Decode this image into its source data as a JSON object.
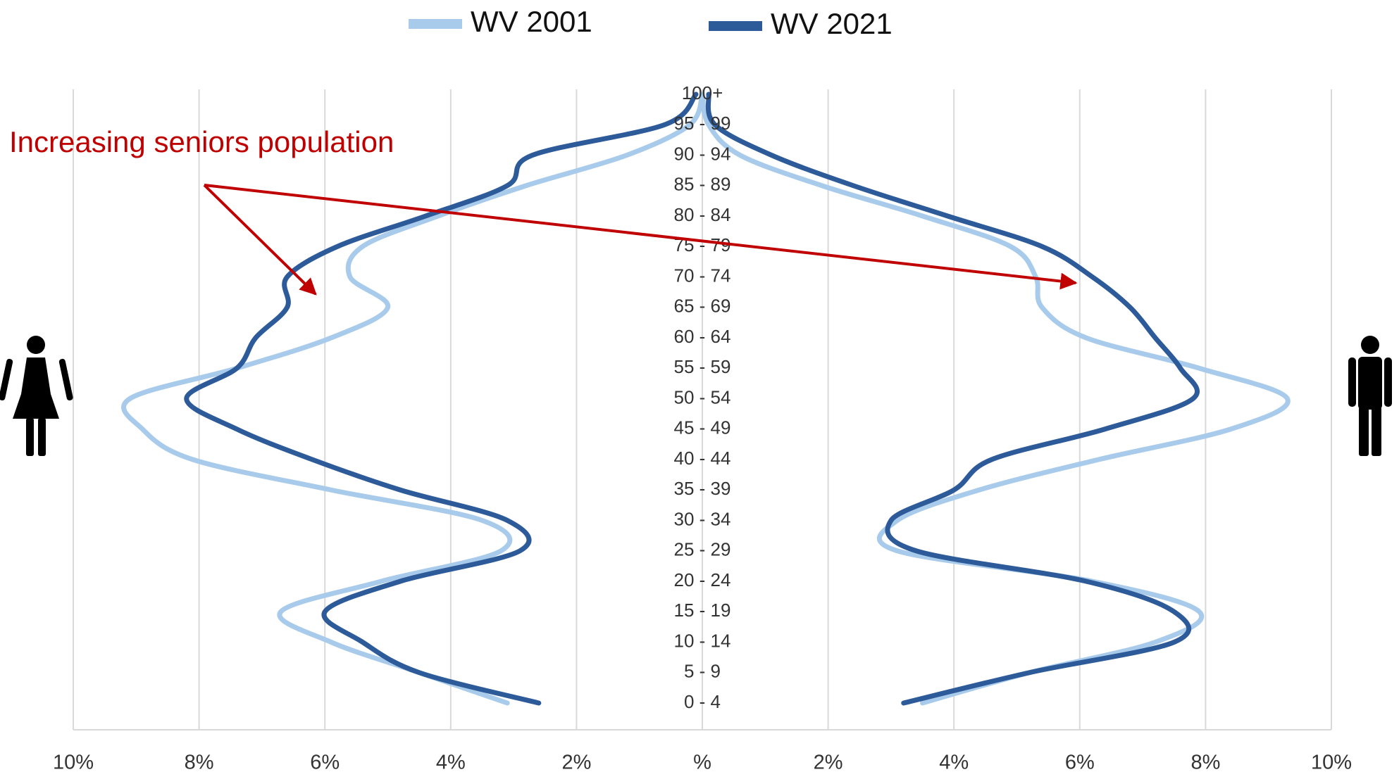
{
  "chart_data": {
    "type": "pyramid-line",
    "annotation": "Increasing seniors population",
    "categories": [
      "0 - 4",
      "5 - 9",
      "10 - 14",
      "15 - 19",
      "20 - 24",
      "25 - 29",
      "30 - 34",
      "35 - 39",
      "40 - 44",
      "45 - 49",
      "50 - 54",
      "55 - 59",
      "60 - 64",
      "65 - 69",
      "70 - 74",
      "75 - 79",
      "80 - 84",
      "85 - 89",
      "90 - 94",
      "95 - 99",
      "100+"
    ],
    "series": [
      {
        "name": "WV 2001",
        "color": "#a9cbeb",
        "female": [
          -3.1,
          -4.5,
          -5.9,
          -6.7,
          -5.1,
          -3.2,
          -3.5,
          -5.9,
          -8.1,
          -8.9,
          -9.1,
          -7.4,
          -5.9,
          -5.0,
          -5.6,
          -5.4,
          -4.2,
          -2.8,
          -1.2,
          -0.2,
          0
        ],
        "male": [
          3.5,
          5.2,
          7.2,
          7.9,
          6.2,
          3.1,
          3.1,
          4.4,
          6.3,
          8.4,
          9.3,
          7.9,
          6.1,
          5.4,
          5.3,
          4.9,
          3.5,
          1.9,
          0.6,
          0.1,
          0
        ]
      },
      {
        "name": "WV 2021",
        "color": "#2d5b9a",
        "female": [
          -2.6,
          -4.5,
          -5.4,
          -6.0,
          -4.8,
          -2.9,
          -3.1,
          -4.8,
          -6.2,
          -7.4,
          -8.2,
          -7.4,
          -7.1,
          -6.6,
          -6.6,
          -5.8,
          -4.4,
          -3.1,
          -2.7,
          -0.6,
          -0.1
        ],
        "male": [
          3.2,
          5.2,
          7.5,
          7.5,
          6.1,
          3.4,
          3.0,
          4.0,
          4.6,
          6.4,
          7.8,
          7.6,
          7.2,
          6.8,
          6.2,
          5.4,
          3.9,
          2.4,
          1.1,
          0.2,
          0.1
        ]
      }
    ],
    "xlim": [
      -10,
      10
    ],
    "xticks": [
      {
        "value": -10,
        "label": "10%"
      },
      {
        "value": -8,
        "label": "8%"
      },
      {
        "value": -6,
        "label": "6%"
      },
      {
        "value": -4,
        "label": "4%"
      },
      {
        "value": -2,
        "label": "2%"
      },
      {
        "value": 0,
        "label": "%"
      },
      {
        "value": 2,
        "label": "2%"
      },
      {
        "value": 4,
        "label": "4%"
      },
      {
        "value": 6,
        "label": "6%"
      },
      {
        "value": 8,
        "label": "8%"
      },
      {
        "value": 10,
        "label": "10%"
      }
    ],
    "grid": true
  }
}
